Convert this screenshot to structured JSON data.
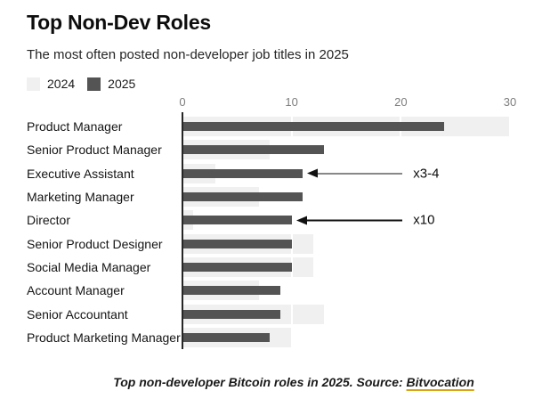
{
  "header": {
    "title": "Top Non-Dev Roles",
    "subtitle": "The most often posted non-developer job titles in 2025"
  },
  "legend": {
    "items": [
      {
        "label": "2024",
        "color": "#f0f0f0"
      },
      {
        "label": "2025",
        "color": "#545454"
      }
    ]
  },
  "chart_data": {
    "type": "bar",
    "orientation": "horizontal",
    "title": "Top Non-Dev Roles",
    "subtitle": "The most often posted non-developer job titles in 2025",
    "categories": [
      "Product Manager",
      "Senior Product Manager",
      "Executive Assistant",
      "Marketing Manager",
      "Director",
      "Senior Product Designer",
      "Social Media Manager",
      "Account Manager",
      "Senior Accountant",
      "Product Marketing Manager"
    ],
    "series": [
      {
        "name": "2024",
        "color": "#f0f0f0",
        "values": [
          30,
          8,
          3,
          7,
          1,
          12,
          12,
          7,
          13,
          10
        ]
      },
      {
        "name": "2025",
        "color": "#545454",
        "values": [
          24,
          13,
          11,
          11,
          10,
          10,
          10,
          9,
          9,
          8
        ]
      }
    ],
    "xlim": [
      0,
      30
    ],
    "x_ticks": [
      0,
      10,
      20,
      30
    ],
    "grid": true,
    "legend_position": "top-left",
    "annotations": [
      {
        "label": "x3-4",
        "category": "Executive Assistant"
      },
      {
        "label": "x10",
        "category": "Director"
      }
    ]
  },
  "caption": {
    "text": "Top non-developer Bitcoin roles in 2025. Source: ",
    "link_label": "Bitvocation"
  },
  "colors": {
    "bar_2024": "#f0f0f0",
    "bar_2025": "#545454",
    "axis_line": "#262626",
    "tick_label": "#7d7d7d",
    "gridline": "#e8e8e8",
    "annotation": "#111111",
    "link_underline": "#d9a418"
  }
}
